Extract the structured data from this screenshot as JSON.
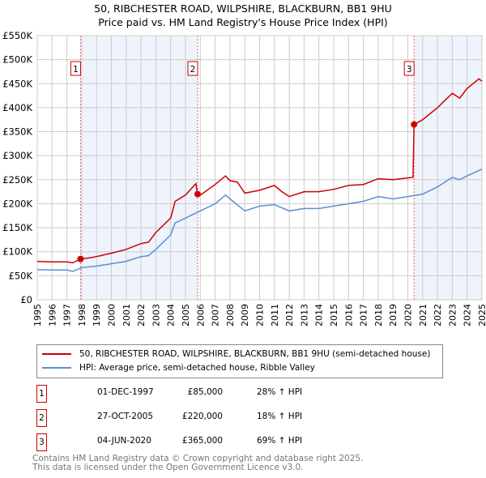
{
  "header": {
    "title": "50, RIBCHESTER ROAD, WILPSHIRE, BLACKBURN, BB1 9HU",
    "subtitle": "Price paid vs. HM Land Registry's House Price Index (HPI)"
  },
  "chart_data": {
    "type": "line",
    "title": "50, RIBCHESTER ROAD, WILPSHIRE, BLACKBURN, BB1 9HU",
    "subtitle": "Price paid vs. HM Land Registry's House Price Index (HPI)",
    "xlim": [
      1995,
      2025
    ],
    "ylim": [
      0,
      550000
    ],
    "x_ticks": [
      "1995",
      "1996",
      "1997",
      "1998",
      "1999",
      "2000",
      "2001",
      "2002",
      "2003",
      "2004",
      "2005",
      "2006",
      "2007",
      "2008",
      "2009",
      "2010",
      "2011",
      "2012",
      "2013",
      "2014",
      "2015",
      "2016",
      "2017",
      "2018",
      "2019",
      "2020",
      "2021",
      "2022",
      "2023",
      "2024",
      "2025"
    ],
    "y_ticks": [
      {
        "v": 0,
        "label": "£0"
      },
      {
        "v": 50000,
        "label": "£50K"
      },
      {
        "v": 100000,
        "label": "£100K"
      },
      {
        "v": 150000,
        "label": "£150K"
      },
      {
        "v": 200000,
        "label": "£200K"
      },
      {
        "v": 250000,
        "label": "£250K"
      },
      {
        "v": 300000,
        "label": "£300K"
      },
      {
        "v": 350000,
        "label": "£350K"
      },
      {
        "v": 400000,
        "label": "£400K"
      },
      {
        "v": 450000,
        "label": "£450K"
      },
      {
        "v": 500000,
        "label": "£500K"
      },
      {
        "v": 550000,
        "label": "£550K"
      }
    ],
    "grid": true,
    "series": [
      {
        "name": "50, RIBCHESTER ROAD, WILPSHIRE, BLACKBURN, BB1 9HU (semi-detached house)",
        "color": "#cc0000",
        "x": [
          1995,
          1996,
          1997,
          1997.4,
          1997.92,
          1998.5,
          1999,
          2000,
          2001,
          2002,
          2002.5,
          2003,
          2004,
          2004.3,
          2005,
          2005.7,
          2005.82,
          2006,
          2007,
          2007.7,
          2008,
          2008.5,
          2009,
          2010,
          2011,
          2011.5,
          2012,
          2013,
          2014,
          2015,
          2016,
          2017,
          2018,
          2019,
          2020.35,
          2020.42,
          2021,
          2022,
          2023,
          2023.5,
          2024,
          2024.8,
          2025
        ],
        "y": [
          80000,
          79000,
          79000,
          77000,
          85000,
          87000,
          90000,
          97000,
          105000,
          117000,
          120000,
          140000,
          170000,
          205000,
          218000,
          242000,
          220000,
          218000,
          240000,
          258000,
          248000,
          245000,
          222000,
          228000,
          238000,
          225000,
          215000,
          225000,
          225000,
          230000,
          238000,
          240000,
          252000,
          250000,
          255000,
          365000,
          375000,
          400000,
          430000,
          420000,
          440000,
          460000,
          455000
        ]
      },
      {
        "name": "HPI: Average price, semi-detached house, Ribble Valley",
        "color": "#5b8fd4",
        "x": [
          1995,
          1996,
          1997,
          1997.4,
          1998,
          1999,
          2000,
          2001,
          2002,
          2002.5,
          2003,
          2004,
          2004.3,
          2005,
          2006,
          2007,
          2007.7,
          2008,
          2009,
          2010,
          2011,
          2012,
          2013,
          2014,
          2015,
          2016,
          2017,
          2018,
          2019,
          2020,
          2021,
          2022,
          2023,
          2023.5,
          2024,
          2025
        ],
        "y": [
          63000,
          62000,
          62000,
          59000,
          67000,
          70000,
          75000,
          80000,
          90000,
          92000,
          105000,
          135000,
          160000,
          170000,
          185000,
          200000,
          218000,
          210000,
          185000,
          195000,
          198000,
          185000,
          190000,
          190000,
          195000,
          200000,
          205000,
          215000,
          210000,
          215000,
          220000,
          235000,
          255000,
          250000,
          258000,
          272000
        ]
      }
    ],
    "sales": [
      {
        "label": "1",
        "x": 1997.92,
        "price": 85000
      },
      {
        "label": "2",
        "x": 2005.82,
        "price": 220000
      },
      {
        "label": "3",
        "x": 2020.42,
        "price": 365000
      }
    ],
    "legend": "bottom"
  },
  "legend": {
    "items": [
      "50, RIBCHESTER ROAD, WILPSHIRE, BLACKBURN, BB1 9HU (semi-detached house)",
      "HPI: Average price, semi-detached house, Ribble Valley"
    ]
  },
  "sales_table": [
    {
      "num": "1",
      "date": "01-DEC-1997",
      "price": "£85,000",
      "hpi": "28% ↑ HPI"
    },
    {
      "num": "2",
      "date": "27-OCT-2005",
      "price": "£220,000",
      "hpi": "18% ↑ HPI"
    },
    {
      "num": "3",
      "date": "04-JUN-2020",
      "price": "£365,000",
      "hpi": "69% ↑ HPI"
    }
  ],
  "footer": {
    "line1": "Contains HM Land Registry data © Crown copyright and database right 2025.",
    "line2": "This data is licensed under the Open Government Licence v3.0."
  }
}
